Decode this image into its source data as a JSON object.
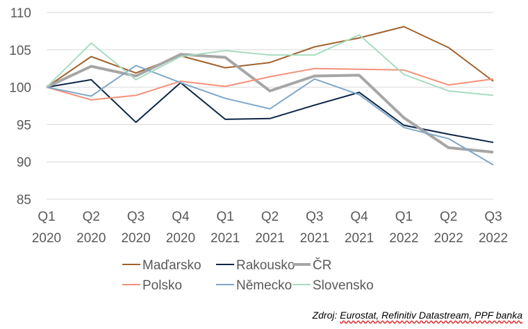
{
  "source_prefix": "Zdroj: ",
  "source_main": "Eurostat, Refinitiv Datastream, PPF banka",
  "chart_data": {
    "type": "line",
    "categories": [
      [
        "Q1",
        "2020"
      ],
      [
        "Q2",
        "2020"
      ],
      [
        "Q3",
        "2020"
      ],
      [
        "Q4",
        "2020"
      ],
      [
        "Q1",
        "2021"
      ],
      [
        "Q2",
        "2021"
      ],
      [
        "Q3",
        "2021"
      ],
      [
        "Q4",
        "2021"
      ],
      [
        "Q1",
        "2022"
      ],
      [
        "Q2",
        "2022"
      ],
      [
        "Q3",
        "2022"
      ]
    ],
    "ylim": [
      85,
      110
    ],
    "yticks": [
      85,
      90,
      95,
      100,
      105,
      110
    ],
    "grid": true,
    "legend_position": "bottom",
    "series": [
      {
        "name": "Maďarsko",
        "color": "#A0622D",
        "width": 2,
        "values": [
          100,
          104.1,
          101.9,
          104.2,
          102.6,
          103.3,
          105.4,
          106.6,
          108.1,
          105.3,
          100.8
        ]
      },
      {
        "name": "Rakousko",
        "color": "#0B2545",
        "width": 2,
        "values": [
          100,
          101.0,
          95.3,
          100.6,
          95.7,
          95.8,
          97.6,
          99.3,
          94.9,
          93.7,
          92.6
        ]
      },
      {
        "name": "ČR",
        "color": "#A6A6A6",
        "width": 4,
        "values": [
          100,
          102.8,
          101.5,
          104.4,
          104.0,
          99.5,
          101.5,
          101.6,
          95.9,
          91.9,
          91.3
        ]
      },
      {
        "name": "Polsko",
        "color": "#F4907A",
        "width": 2,
        "values": [
          100,
          98.3,
          98.9,
          100.8,
          100.1,
          101.4,
          102.5,
          102.4,
          102.3,
          100.3,
          101.1
        ]
      },
      {
        "name": "Německo",
        "color": "#7FA7C8",
        "width": 2,
        "values": [
          100,
          98.8,
          102.9,
          100.6,
          98.5,
          97.1,
          101.1,
          99.0,
          94.6,
          93.1,
          89.6
        ]
      },
      {
        "name": "Slovensko",
        "color": "#A8DCC0",
        "width": 2,
        "values": [
          100,
          105.9,
          101.0,
          104.1,
          104.9,
          104.3,
          104.3,
          107.0,
          101.7,
          99.5,
          98.9
        ]
      }
    ]
  }
}
